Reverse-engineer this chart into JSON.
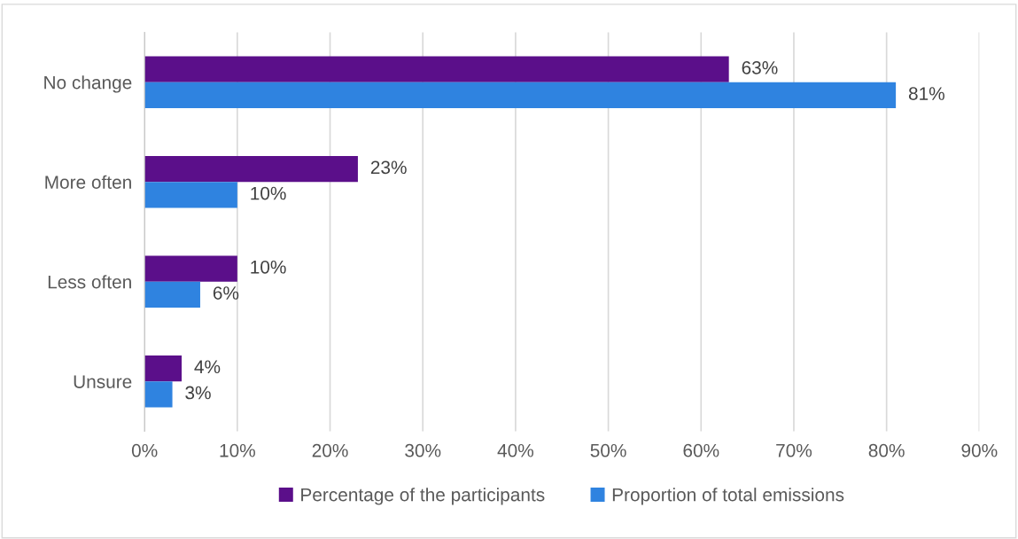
{
  "chart_data": {
    "type": "bar",
    "orientation": "horizontal",
    "categories": [
      "No change",
      "More often",
      "Less often",
      "Unsure"
    ],
    "series": [
      {
        "name": "Percentage of the participants",
        "color": "#5b0f8a",
        "values": [
          63,
          23,
          10,
          4
        ],
        "value_labels": [
          "63%",
          "23%",
          "10%",
          "4%"
        ]
      },
      {
        "name": "Proportion of total emissions",
        "color": "#2f83e0",
        "values": [
          81,
          10,
          6,
          3
        ],
        "value_labels": [
          "81%",
          "10%",
          "6%",
          "3%"
        ]
      }
    ],
    "xlim": [
      0,
      90
    ],
    "xticks": [
      {
        "value": 0,
        "label": "0%"
      },
      {
        "value": 10,
        "label": "10%"
      },
      {
        "value": 20,
        "label": "20%"
      },
      {
        "value": 30,
        "label": "30%"
      },
      {
        "value": 40,
        "label": "40%"
      },
      {
        "value": 50,
        "label": "50%"
      },
      {
        "value": 60,
        "label": "60%"
      },
      {
        "value": 70,
        "label": "70%"
      },
      {
        "value": 80,
        "label": "80%"
      },
      {
        "value": 90,
        "label": "90%"
      }
    ],
    "grid": "x",
    "legend": "bottom"
  }
}
